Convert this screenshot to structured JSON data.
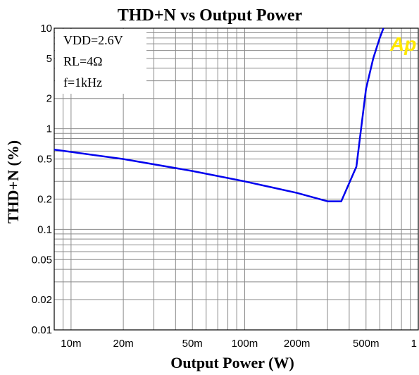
{
  "chart_data": {
    "type": "line",
    "title": "THD+N vs Output Power",
    "xlabel": "Output Power (W)",
    "ylabel": "THD+N (%)",
    "xscale": "log",
    "yscale": "log",
    "xlim": [
      0.008,
      1
    ],
    "ylim": [
      0.01,
      10
    ],
    "grid": true,
    "x_ticks": [
      {
        "value": 0.01,
        "label": "10m"
      },
      {
        "value": 0.02,
        "label": "20m"
      },
      {
        "value": 0.05,
        "label": "50m"
      },
      {
        "value": 0.1,
        "label": "100m"
      },
      {
        "value": 0.2,
        "label": "200m"
      },
      {
        "value": 0.5,
        "label": "500m"
      },
      {
        "value": 1,
        "label": "1"
      }
    ],
    "y_ticks": [
      {
        "value": 0.01,
        "label": "0.01"
      },
      {
        "value": 0.02,
        "label": "0.02"
      },
      {
        "value": 0.05,
        "label": "0.05"
      },
      {
        "value": 0.1,
        "label": "0.1"
      },
      {
        "value": 0.2,
        "label": "0.2"
      },
      {
        "value": 0.5,
        "label": "0.5"
      },
      {
        "value": 1,
        "label": "1"
      },
      {
        "value": 2,
        "label": "2"
      },
      {
        "value": 5,
        "label": "5"
      },
      {
        "value": 10,
        "label": "10"
      }
    ],
    "annotations": [
      "VDD=2.6V",
      "RL=4Ω",
      "f=1kHz"
    ],
    "logo_text": "Ap",
    "series": [
      {
        "color": "#0000ee",
        "x": [
          0.008,
          0.02,
          0.05,
          0.1,
          0.2,
          0.3,
          0.36,
          0.44,
          0.5,
          0.55,
          0.6,
          0.63
        ],
        "y": [
          0.62,
          0.5,
          0.38,
          0.3,
          0.23,
          0.19,
          0.19,
          0.42,
          2.5,
          5.0,
          8.0,
          10.0
        ]
      }
    ]
  }
}
